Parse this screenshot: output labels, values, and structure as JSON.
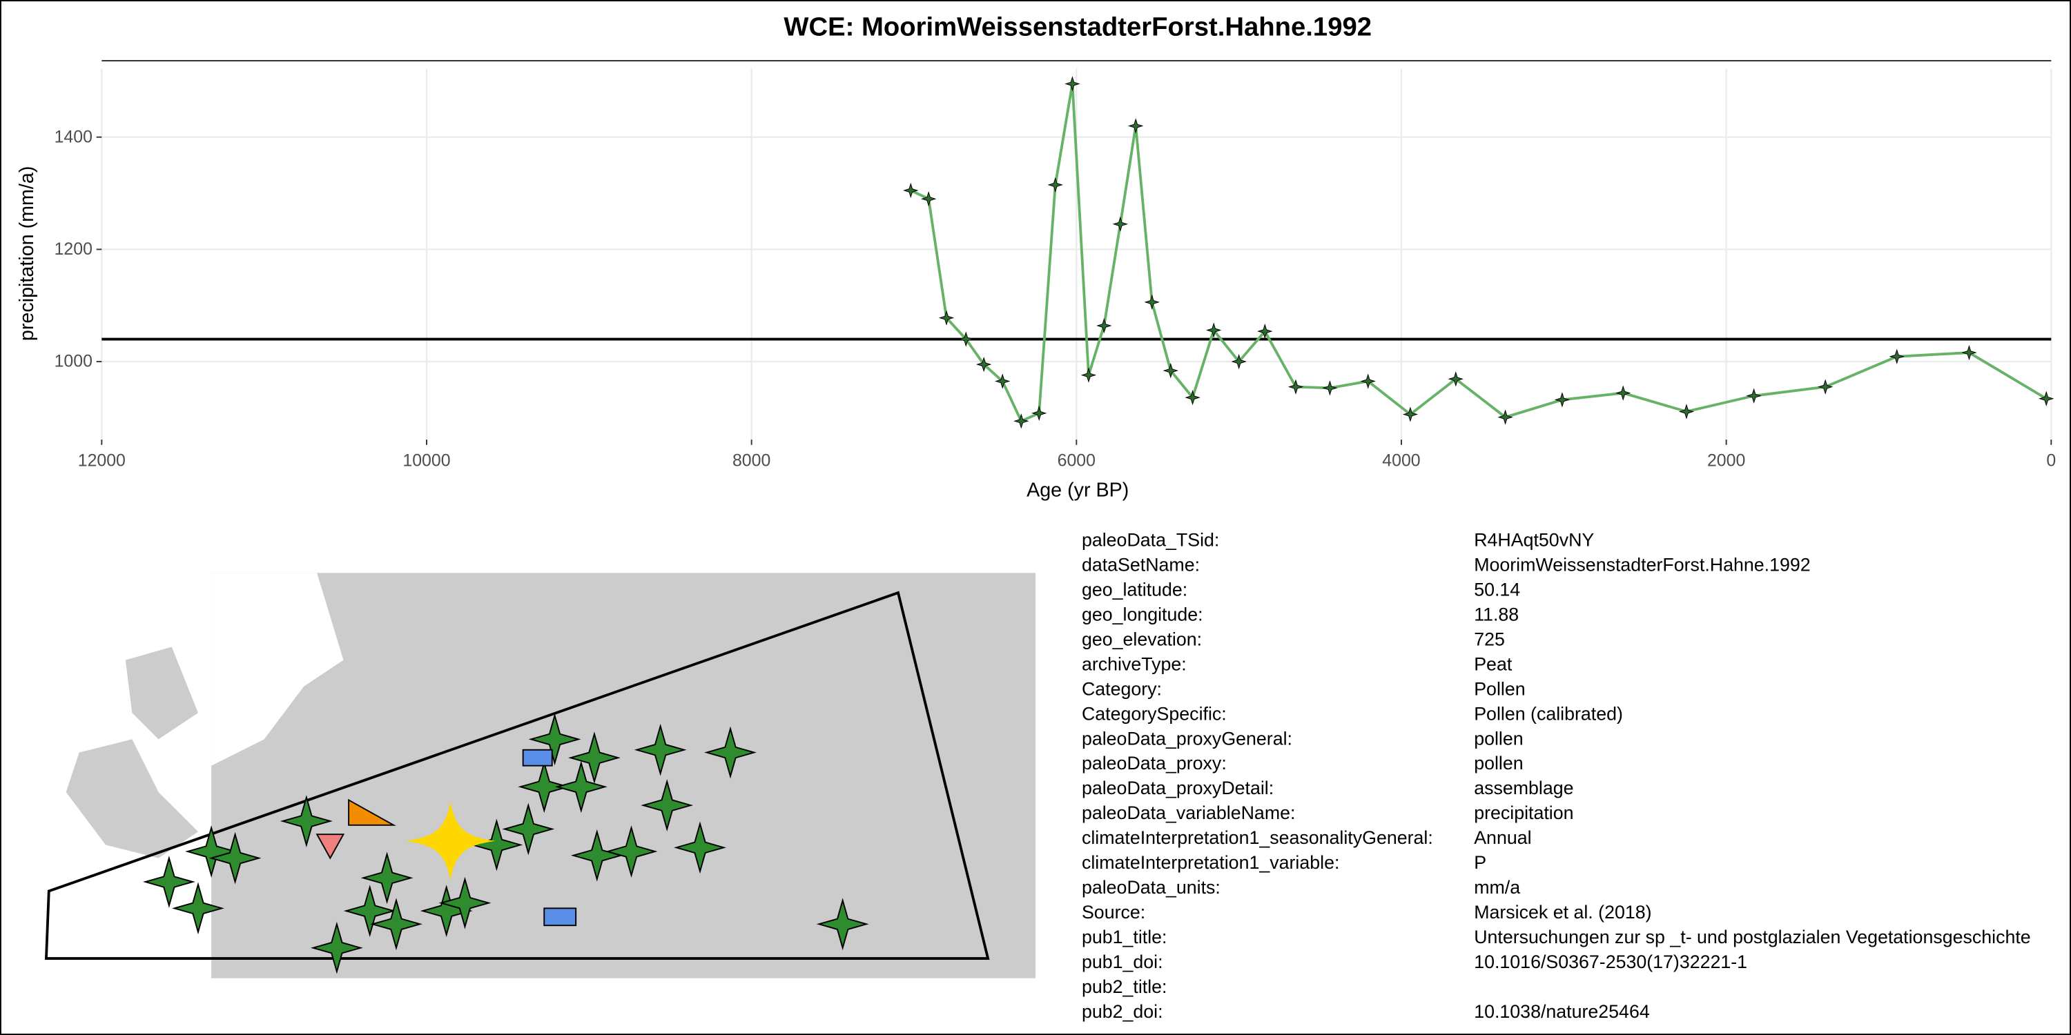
{
  "chart_data": {
    "type": "line",
    "title": "WCE: MoorimWeissenstadterForst.Hahne.1992",
    "xlabel": "Age (yr BP)",
    "ylabel": "precipitation (mm/a)",
    "x": [
      7020,
      6910,
      6800,
      6680,
      6570,
      6455,
      6340,
      6230,
      6130,
      6025,
      5925,
      5830,
      5730,
      5635,
      5535,
      5420,
      5285,
      5155,
      5000,
      4840,
      4650,
      4440,
      4205,
      3945,
      3665,
      3360,
      3010,
      2635,
      2245,
      1830,
      1390,
      950,
      505,
      30
    ],
    "values": [
      1305,
      1290,
      1078,
      1040,
      995,
      965,
      894,
      908,
      1315,
      1495,
      976,
      1064,
      1245,
      1420,
      1106,
      984,
      936,
      1056,
      1000,
      1054,
      955,
      953,
      965,
      906,
      969,
      901,
      932,
      944,
      911,
      939,
      955,
      1009,
      1016,
      934
    ],
    "color": "#66b266",
    "marker_color": "#2e6b2e",
    "reference_line": 1040,
    "xlim": [
      12000,
      0
    ],
    "xticks": [
      12000,
      10000,
      8000,
      6000,
      4000,
      2000,
      0
    ],
    "ylim": [
      861,
      1522
    ],
    "yticks": [
      1000,
      1200,
      1400
    ],
    "grid": true
  },
  "metadata": {
    "rows": [
      [
        "paleoData_TSid:",
        "R4HAqt50vNY"
      ],
      [
        "dataSetName:",
        "MoorimWeissenstadterForst.Hahne.1992"
      ],
      [
        "geo_latitude:",
        "50.14"
      ],
      [
        "geo_longitude:",
        "11.88"
      ],
      [
        "geo_elevation:",
        "725"
      ],
      [
        "archiveType:",
        "Peat"
      ],
      [
        "Category:",
        "Pollen"
      ],
      [
        "CategorySpecific:",
        "Pollen (calibrated)"
      ],
      [
        "paleoData_proxyGeneral:",
        "pollen"
      ],
      [
        "paleoData_proxy:",
        "pollen"
      ],
      [
        "paleoData_proxyDetail:",
        "assemblage"
      ],
      [
        "paleoData_variableName:",
        "precipitation"
      ],
      [
        "climateInterpretation1_seasonalityGeneral:",
        "Annual"
      ],
      [
        "climateInterpretation1_variable:",
        "P"
      ],
      [
        "paleoData_units:",
        "mm/a"
      ],
      [
        "Source:",
        "Marsicek et al. (2018)"
      ],
      [
        "pub1_title:",
        "Untersuchungen zur sp _t- und postglazialen Vegetationsgeschichte"
      ],
      [
        "pub1_doi:",
        "10.1016/S0367-2530(17)32221-1"
      ],
      [
        "pub2_title:",
        ""
      ],
      [
        "pub2_doi:",
        "10.1038/nature25464"
      ]
    ]
  }
}
